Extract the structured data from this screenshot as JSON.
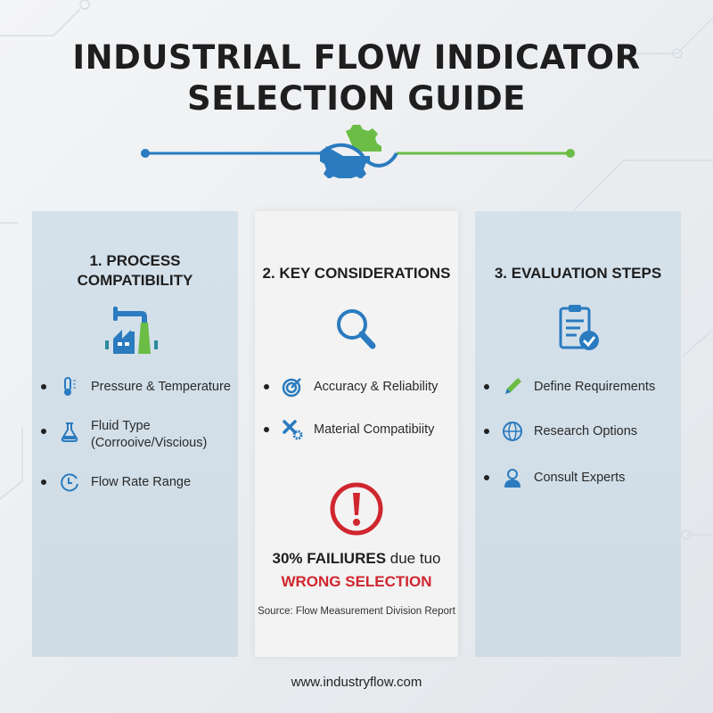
{
  "title_line1": "INDUSTRIAL FLOW INDICATOR",
  "title_line2": "SELECTION GUIDE",
  "colors": {
    "blue": "#2a7bbf",
    "green": "#6bbd45",
    "red": "#d0262e",
    "panel_blue": "#d3dfe9"
  },
  "panels": [
    {
      "heading_line1": "1. PROCESS",
      "heading_line2": "COMPATIBILITY",
      "icon": "factory-icon",
      "items": [
        {
          "icon": "thermometer-icon",
          "label": "Pressure & Temperature"
        },
        {
          "icon": "flask-icon",
          "label": "Fluid Type",
          "label2": "(Corrooive/Viscious)"
        },
        {
          "icon": "clock-icon",
          "label": "Flow Rate Range"
        }
      ]
    },
    {
      "heading": "2. KEY CONSIDERATIONS",
      "icon": "magnifier-icon",
      "items": [
        {
          "icon": "target-icon",
          "label": "Accuracy & Reliability"
        },
        {
          "icon": "tools-icon",
          "label": "Material Compatibiity"
        }
      ],
      "alert_icon": "exclamation-icon",
      "stat_bold": "30% FAILIURES",
      "stat_rest": " due tuo",
      "stat_highlight": "WRONG SELECTION",
      "source": "Source: Flow Measurement Division Report"
    },
    {
      "heading": "3. EVALUATION STEPS",
      "icon": "clipboard-check-icon",
      "items": [
        {
          "icon": "pencil-icon",
          "label": "Define Requirements"
        },
        {
          "icon": "globe-icon",
          "label": "Research Options"
        },
        {
          "icon": "user-icon",
          "label": "Consult Experts"
        }
      ]
    }
  ],
  "footer": "www.industryflow.com"
}
